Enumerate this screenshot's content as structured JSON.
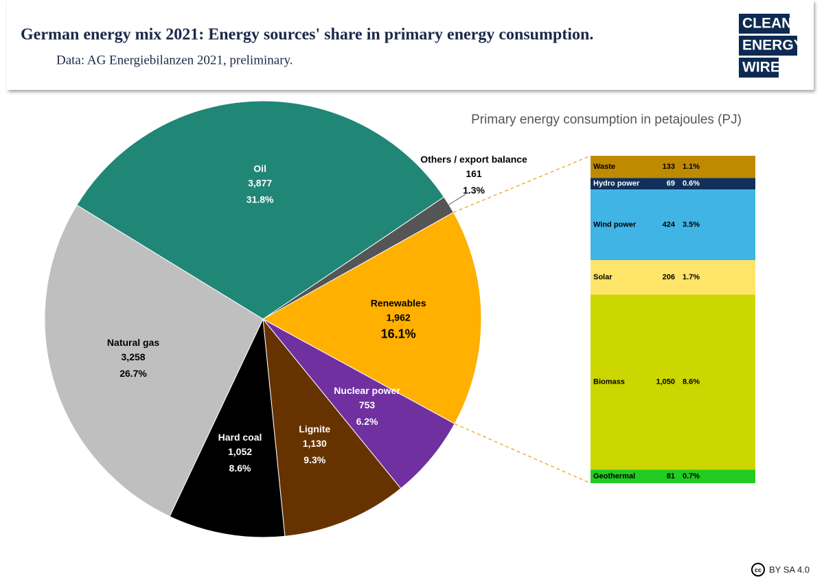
{
  "header": {
    "title": "German energy mix 2021: Energy sources' share in primary energy consumption.",
    "subtitle": "Data: AG Energiebilanzen 2021, preliminary."
  },
  "branding": {
    "logo": [
      "CLEAN",
      "ENERGY",
      "WIRE"
    ],
    "license_icon": "cc",
    "license": "BY SA 4.0"
  },
  "chart_data": [
    {
      "type": "pie",
      "categories": [
        "Oil",
        "Others / export balance",
        "Renewables",
        "Nuclear power",
        "Lignite",
        "Hard coal",
        "Natural gas"
      ],
      "values": [
        3877,
        161,
        1962,
        753,
        1130,
        1052,
        3258
      ],
      "value_labels": [
        "3,877",
        "161",
        "1,962",
        "753",
        "1,130",
        "1,052",
        "3,258"
      ],
      "percent_labels": [
        "31.8%",
        "1.3%",
        "16.1%",
        "6.2%",
        "9.3%",
        "8.6%",
        "26.7%"
      ],
      "colors": [
        "#208676",
        "#555555",
        "#ffb000",
        "#7030a0",
        "#663300",
        "#000000",
        "#bfbfbf"
      ]
    },
    {
      "type": "stacked-bar",
      "title": "Primary energy consumption in petajoules (PJ)",
      "categories": [
        "Waste",
        "Hydro power",
        "Wind power",
        "Solar",
        "Biomass",
        "Geothermal"
      ],
      "values": [
        133,
        69,
        424,
        206,
        1050,
        81
      ],
      "value_labels": [
        "133",
        "69",
        "424",
        "206",
        "1,050",
        "81"
      ],
      "percent_labels": [
        "1.1%",
        "0.6%",
        "3.5%",
        "1.7%",
        "8.6%",
        "0.7%"
      ],
      "colors": [
        "#bf8a00",
        "#10305a",
        "#41b4e6",
        "#ffe46a",
        "#ccd600",
        "#22cc22"
      ]
    }
  ]
}
